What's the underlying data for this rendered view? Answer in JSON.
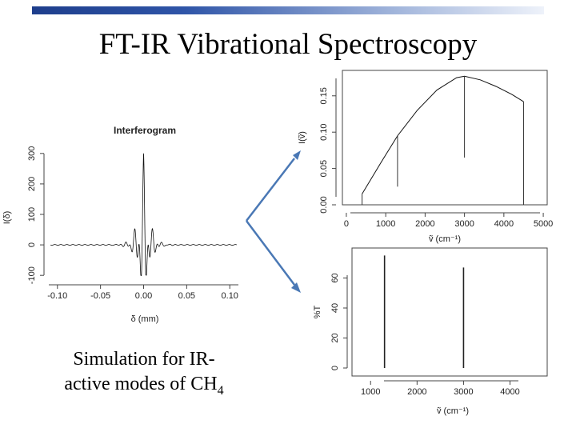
{
  "slide": {
    "title": "FT-IR Vibrational Spectroscopy",
    "caption_line1": "Simulation for IR-",
    "caption_line2": "active modes of CH",
    "caption_subscript": "4",
    "accent_color": "#4a78b5"
  },
  "chart_data": [
    {
      "type": "line",
      "title": "Interferogram",
      "xlabel": "δ (mm)",
      "ylabel": "I(δ)",
      "xlim": [
        -0.11,
        0.11
      ],
      "ylim": [
        -110,
        310
      ],
      "xticks": [
        "-0.10",
        "-0.05",
        "0.00",
        "0.05",
        "0.10"
      ],
      "yticks": [
        "-100",
        "0",
        "100",
        "200",
        "300"
      ],
      "series": [
        {
          "peak": 300,
          "trough": -100,
          "center": 0.0
        }
      ]
    },
    {
      "type": "line",
      "title": "",
      "xlabel": "ṽ (cm⁻¹)",
      "ylabel": "I(ṽ)",
      "xlim": [
        -100,
        5100
      ],
      "ylim": [
        0,
        0.185
      ],
      "xticks": [
        "0",
        "1000",
        "2000",
        "3000",
        "4000",
        "5000"
      ],
      "yticks": [
        "0.00",
        "0.05",
        "0.10",
        "0.15"
      ],
      "series": [
        {
          "x": [
            400,
            900,
            1300,
            1800,
            2300,
            2800,
            3000,
            3400,
            3800,
            4200,
            4500
          ],
          "y": [
            0.015,
            0.06,
            0.095,
            0.13,
            0.158,
            0.175,
            0.177,
            0.172,
            0.163,
            0.152,
            0.142
          ]
        }
      ],
      "lines": [
        {
          "x": 400,
          "y_bottom": 0.0,
          "y_top": 0.015
        },
        {
          "x": 1300,
          "y_bottom": 0.025,
          "y_top": 0.095
        },
        {
          "x": 3000,
          "y_bottom": 0.065,
          "y_top": 0.177
        },
        {
          "x": 4500,
          "y_bottom": 0.0,
          "y_top": 0.142
        }
      ]
    },
    {
      "type": "line",
      "title": "",
      "xlabel": "ṽ (cm⁻¹)",
      "ylabel": "%T",
      "xlim": [
        600,
        4800
      ],
      "ylim": [
        0,
        80
      ],
      "xticks": [
        "1000",
        "2000",
        "3000",
        "4000"
      ],
      "yticks": [
        "0",
        "20",
        "40",
        "60"
      ],
      "lines": [
        {
          "x": 1300,
          "y_bottom": 0,
          "y_top": 75
        },
        {
          "x": 3000,
          "y_bottom": 0,
          "y_top": 67
        }
      ]
    }
  ]
}
